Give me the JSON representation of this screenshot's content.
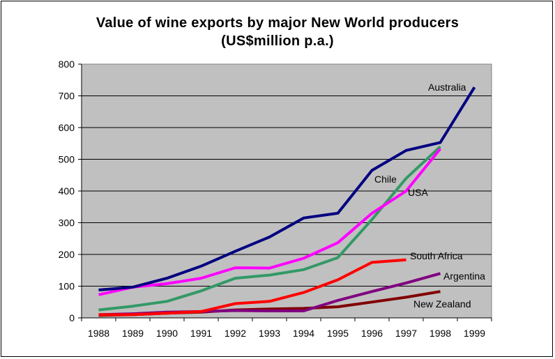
{
  "chart_data": {
    "type": "line",
    "title": "Value of wine exports by major New World producers",
    "subtitle": "(US$million p.a.)",
    "xlabel": "",
    "ylabel": "",
    "ylim": [
      0,
      800
    ],
    "yticks": [
      "0",
      "100",
      "200",
      "300",
      "400",
      "500",
      "600",
      "700",
      "800"
    ],
    "categories": [
      "1988",
      "1989",
      "1990",
      "1991",
      "1992",
      "1993",
      "1994",
      "1995",
      "1996",
      "1997",
      "1998",
      "1999"
    ],
    "grid": true,
    "plot_background": "#c0c0c0",
    "legend": "inline labels next to lines",
    "series": [
      {
        "name": "Australia",
        "color": "#000080",
        "values": [
          88,
          97,
          125,
          163,
          210,
          255,
          315,
          330,
          465,
          528,
          553,
          727
        ]
      },
      {
        "name": "USA",
        "color": "#ff00ff",
        "values": [
          73,
          97,
          108,
          125,
          158,
          157,
          188,
          237,
          330,
          400,
          533,
          null
        ]
      },
      {
        "name": "Chile",
        "color": "#339966",
        "values": [
          25,
          37,
          52,
          85,
          125,
          135,
          152,
          190,
          310,
          440,
          540,
          null
        ]
      },
      {
        "name": "South Africa",
        "color": "#ff0000",
        "values": [
          10,
          10,
          15,
          20,
          45,
          52,
          80,
          120,
          175,
          183,
          null,
          null
        ]
      },
      {
        "name": "Argentina",
        "color": "#800080",
        "values": [
          10,
          13,
          18,
          20,
          23,
          22,
          22,
          55,
          83,
          110,
          140,
          null
        ]
      },
      {
        "name": "New Zealand",
        "color": "#800000",
        "values": [
          8,
          10,
          15,
          18,
          25,
          28,
          30,
          35,
          50,
          65,
          83,
          null
        ]
      }
    ]
  }
}
